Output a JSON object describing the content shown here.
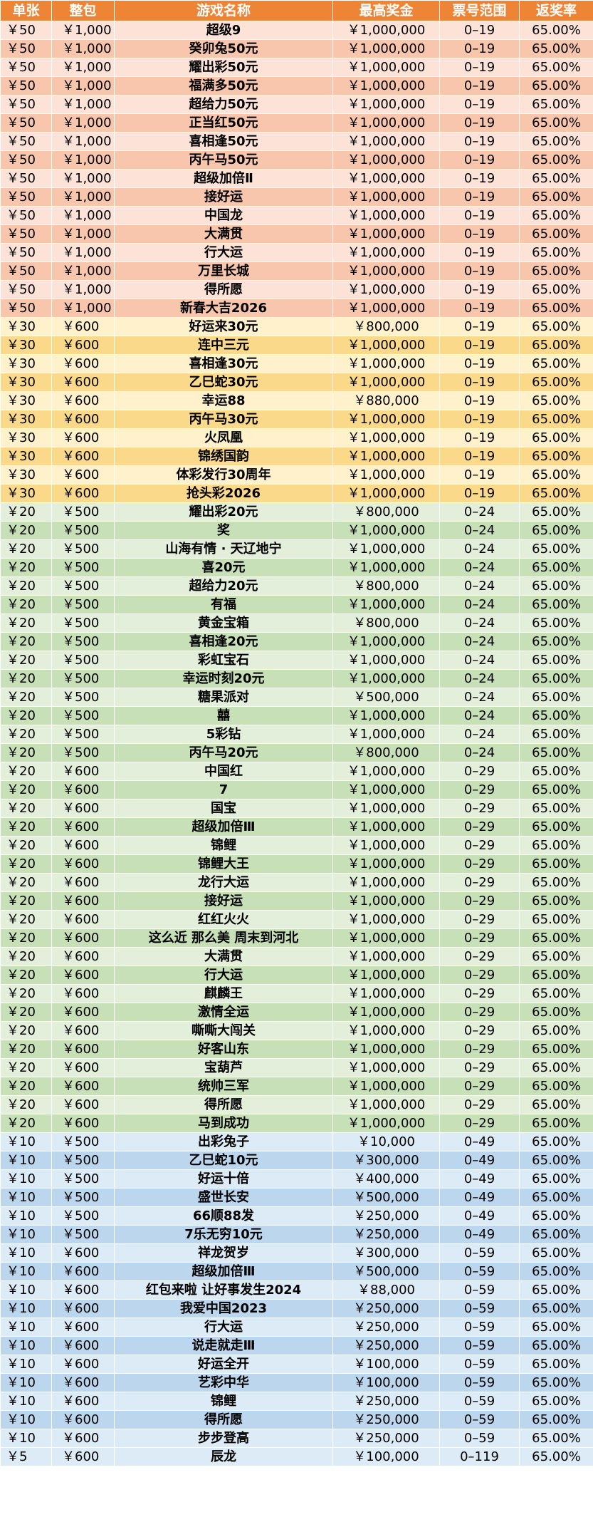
{
  "headers": [
    "单张",
    "整包",
    "游戏名称",
    "最高奖金",
    "票号范围",
    "返奖率"
  ],
  "row_colors": {
    "50": [
      "#fde3d7",
      "#f8c5ad"
    ],
    "30": [
      "#fff1cc",
      "#fbd98a"
    ],
    "20": [
      "#e3efda",
      "#c8e0b7"
    ],
    "10": [
      "#ddebf7",
      "#bcd6ee"
    ],
    "5": [
      "#dcebf6",
      "#dcebf6"
    ]
  },
  "rows": [
    {
      "group": "50",
      "single": "￥50",
      "pack": "￥1,000",
      "name": "超级9",
      "prize": "￥1,000,000",
      "range": "0–19",
      "rate": "65.00%"
    },
    {
      "group": "50",
      "single": "￥50",
      "pack": "￥1,000",
      "name": "癸卯兔50元",
      "prize": "￥1,000,000",
      "range": "0–19",
      "rate": "65.00%"
    },
    {
      "group": "50",
      "single": "￥50",
      "pack": "￥1,000",
      "name": "耀出彩50元",
      "prize": "￥1,000,000",
      "range": "0–19",
      "rate": "65.00%"
    },
    {
      "group": "50",
      "single": "￥50",
      "pack": "￥1,000",
      "name": "福满多50元",
      "prize": "￥1,000,000",
      "range": "0–19",
      "rate": "65.00%"
    },
    {
      "group": "50",
      "single": "￥50",
      "pack": "￥1,000",
      "name": "超给力50元",
      "prize": "￥1,000,000",
      "range": "0–19",
      "rate": "65.00%"
    },
    {
      "group": "50",
      "single": "￥50",
      "pack": "￥1,000",
      "name": "正当红50元",
      "prize": "￥1,000,000",
      "range": "0–19",
      "rate": "65.00%"
    },
    {
      "group": "50",
      "single": "￥50",
      "pack": "￥1,000",
      "name": "喜相逢50元",
      "prize": "￥1,000,000",
      "range": "0–19",
      "rate": "65.00%"
    },
    {
      "group": "50",
      "single": "￥50",
      "pack": "￥1,000",
      "name": "丙午马50元",
      "prize": "￥1,000,000",
      "range": "0–19",
      "rate": "65.00%"
    },
    {
      "group": "50",
      "single": "￥50",
      "pack": "￥1,000",
      "name": "超级加倍Ⅱ",
      "prize": "￥1,000,000",
      "range": "0–19",
      "rate": "65.00%"
    },
    {
      "group": "50",
      "single": "￥50",
      "pack": "￥1,000",
      "name": "接好运",
      "prize": "￥1,000,000",
      "range": "0–19",
      "rate": "65.00%"
    },
    {
      "group": "50",
      "single": "￥50",
      "pack": "￥1,000",
      "name": "中国龙",
      "prize": "￥1,000,000",
      "range": "0–19",
      "rate": "65.00%"
    },
    {
      "group": "50",
      "single": "￥50",
      "pack": "￥1,000",
      "name": "大满贯",
      "prize": "￥1,000,000",
      "range": "0–19",
      "rate": "65.00%"
    },
    {
      "group": "50",
      "single": "￥50",
      "pack": "￥1,000",
      "name": "行大运",
      "prize": "￥1,000,000",
      "range": "0–19",
      "rate": "65.00%"
    },
    {
      "group": "50",
      "single": "￥50",
      "pack": "￥1,000",
      "name": "万里长城",
      "prize": "￥1,000,000",
      "range": "0–19",
      "rate": "65.00%"
    },
    {
      "group": "50",
      "single": "￥50",
      "pack": "￥1,000",
      "name": "得所愿",
      "prize": "￥1,000,000",
      "range": "0–19",
      "rate": "65.00%"
    },
    {
      "group": "50",
      "single": "￥50",
      "pack": "￥1,000",
      "name": "新春大吉2026",
      "prize": "￥1,000,000",
      "range": "0–19",
      "rate": "65.00%"
    },
    {
      "group": "30",
      "single": "￥30",
      "pack": "￥600",
      "name": "好运来30元",
      "prize": "￥800,000",
      "range": "0–19",
      "rate": "65.00%"
    },
    {
      "group": "30",
      "single": "￥30",
      "pack": "￥600",
      "name": "连中三元",
      "prize": "￥1,000,000",
      "range": "0–19",
      "rate": "65.00%"
    },
    {
      "group": "30",
      "single": "￥30",
      "pack": "￥600",
      "name": "喜相逢30元",
      "prize": "￥1,000,000",
      "range": "0–19",
      "rate": "65.00%"
    },
    {
      "group": "30",
      "single": "￥30",
      "pack": "￥600",
      "name": "乙巳蛇30元",
      "prize": "￥1,000,000",
      "range": "0–19",
      "rate": "65.00%"
    },
    {
      "group": "30",
      "single": "￥30",
      "pack": "￥600",
      "name": "幸运88",
      "prize": "￥880,000",
      "range": "0–19",
      "rate": "65.00%"
    },
    {
      "group": "30",
      "single": "￥30",
      "pack": "￥600",
      "name": "丙午马30元",
      "prize": "￥1,000,000",
      "range": "0–19",
      "rate": "65.00%"
    },
    {
      "group": "30",
      "single": "￥30",
      "pack": "￥600",
      "name": "火凤凰",
      "prize": "￥1,000,000",
      "range": "0–19",
      "rate": "65.00%"
    },
    {
      "group": "30",
      "single": "￥30",
      "pack": "￥600",
      "name": "锦绣国韵",
      "prize": "￥1,000,000",
      "range": "0–19",
      "rate": "65.00%"
    },
    {
      "group": "30",
      "single": "￥30",
      "pack": "￥600",
      "name": "体彩发行30周年",
      "prize": "￥1,000,000",
      "range": "0–19",
      "rate": "65.00%"
    },
    {
      "group": "30",
      "single": "￥30",
      "pack": "￥600",
      "name": "抢头彩2026",
      "prize": "￥1,000,000",
      "range": "0–19",
      "rate": "65.00%"
    },
    {
      "group": "20",
      "single": "￥20",
      "pack": "￥500",
      "name": "耀出彩20元",
      "prize": "￥800,000",
      "range": "0–24",
      "rate": "65.00%"
    },
    {
      "group": "20",
      "single": "￥20",
      "pack": "￥500",
      "name": "奖",
      "prize": "￥1,000,000",
      "range": "0–24",
      "rate": "65.00%"
    },
    {
      "group": "20",
      "single": "￥20",
      "pack": "￥500",
      "name": "山海有情 · 天辽地宁",
      "prize": "￥1,000,000",
      "range": "0–24",
      "rate": "65.00%"
    },
    {
      "group": "20",
      "single": "￥20",
      "pack": "￥500",
      "name": "喜20元",
      "prize": "￥1,000,000",
      "range": "0–24",
      "rate": "65.00%"
    },
    {
      "group": "20",
      "single": "￥20",
      "pack": "￥500",
      "name": "超给力20元",
      "prize": "￥800,000",
      "range": "0–24",
      "rate": "65.00%"
    },
    {
      "group": "20",
      "single": "￥20",
      "pack": "￥500",
      "name": "有福",
      "prize": "￥1,000,000",
      "range": "0–24",
      "rate": "65.00%"
    },
    {
      "group": "20",
      "single": "￥20",
      "pack": "￥500",
      "name": "黄金宝箱",
      "prize": "￥800,000",
      "range": "0–24",
      "rate": "65.00%"
    },
    {
      "group": "20",
      "single": "￥20",
      "pack": "￥500",
      "name": "喜相逢20元",
      "prize": "￥1,000,000",
      "range": "0–24",
      "rate": "65.00%"
    },
    {
      "group": "20",
      "single": "￥20",
      "pack": "￥500",
      "name": "彩虹宝石",
      "prize": "￥1,000,000",
      "range": "0–24",
      "rate": "65.00%"
    },
    {
      "group": "20",
      "single": "￥20",
      "pack": "￥500",
      "name": "幸运时刻20元",
      "prize": "￥1,000,000",
      "range": "0–24",
      "rate": "65.00%"
    },
    {
      "group": "20",
      "single": "￥20",
      "pack": "￥500",
      "name": "糖果派对",
      "prize": "￥500,000",
      "range": "0–24",
      "rate": "65.00%"
    },
    {
      "group": "20",
      "single": "￥20",
      "pack": "￥500",
      "name": "囍",
      "prize": "￥1,000,000",
      "range": "0–24",
      "rate": "65.00%"
    },
    {
      "group": "20",
      "single": "￥20",
      "pack": "￥500",
      "name": "5彩钻",
      "prize": "￥1,000,000",
      "range": "0–24",
      "rate": "65.00%"
    },
    {
      "group": "20",
      "single": "￥20",
      "pack": "￥500",
      "name": "丙午马20元",
      "prize": "￥800,000",
      "range": "0–24",
      "rate": "65.00%"
    },
    {
      "group": "20",
      "single": "￥20",
      "pack": "￥600",
      "name": "中国红",
      "prize": "￥1,000,000",
      "range": "0–29",
      "rate": "65.00%"
    },
    {
      "group": "20",
      "single": "￥20",
      "pack": "￥600",
      "name": "7",
      "prize": "￥1,000,000",
      "range": "0–29",
      "rate": "65.00%"
    },
    {
      "group": "20",
      "single": "￥20",
      "pack": "￥600",
      "name": "国宝",
      "prize": "￥1,000,000",
      "range": "0–29",
      "rate": "65.00%"
    },
    {
      "group": "20",
      "single": "￥20",
      "pack": "￥600",
      "name": "超级加倍Ⅲ",
      "prize": "￥1,000,000",
      "range": "0–29",
      "rate": "65.00%"
    },
    {
      "group": "20",
      "single": "￥20",
      "pack": "￥600",
      "name": "锦鲤",
      "prize": "￥1,000,000",
      "range": "0–29",
      "rate": "65.00%"
    },
    {
      "group": "20",
      "single": "￥20",
      "pack": "￥600",
      "name": "锦鲤大王",
      "prize": "￥1,000,000",
      "range": "0–29",
      "rate": "65.00%"
    },
    {
      "group": "20",
      "single": "￥20",
      "pack": "￥600",
      "name": "龙行大运",
      "prize": "￥1,000,000",
      "range": "0–29",
      "rate": "65.00%"
    },
    {
      "group": "20",
      "single": "￥20",
      "pack": "￥600",
      "name": "接好运",
      "prize": "￥1,000,000",
      "range": "0–29",
      "rate": "65.00%"
    },
    {
      "group": "20",
      "single": "￥20",
      "pack": "￥600",
      "name": "红红火火",
      "prize": "￥1,000,000",
      "range": "0–29",
      "rate": "65.00%"
    },
    {
      "group": "20",
      "single": "￥20",
      "pack": "￥600",
      "name": "这么近 那么美 周末到河北",
      "prize": "￥1,000,000",
      "range": "0–29",
      "rate": "65.00%"
    },
    {
      "group": "20",
      "single": "￥20",
      "pack": "￥600",
      "name": "大满贯",
      "prize": "￥1,000,000",
      "range": "0–29",
      "rate": "65.00%"
    },
    {
      "group": "20",
      "single": "￥20",
      "pack": "￥600",
      "name": "行大运",
      "prize": "￥1,000,000",
      "range": "0–29",
      "rate": "65.00%"
    },
    {
      "group": "20",
      "single": "￥20",
      "pack": "￥600",
      "name": "麒麟王",
      "prize": "￥1,000,000",
      "range": "0–29",
      "rate": "65.00%"
    },
    {
      "group": "20",
      "single": "￥20",
      "pack": "￥600",
      "name": "激情全运",
      "prize": "￥1,000,000",
      "range": "0–29",
      "rate": "65.00%"
    },
    {
      "group": "20",
      "single": "￥20",
      "pack": "￥600",
      "name": "嘶嘶大闯关",
      "prize": "￥1,000,000",
      "range": "0–29",
      "rate": "65.00%"
    },
    {
      "group": "20",
      "single": "￥20",
      "pack": "￥600",
      "name": "好客山东",
      "prize": "￥1,000,000",
      "range": "0–29",
      "rate": "65.00%"
    },
    {
      "group": "20",
      "single": "￥20",
      "pack": "￥600",
      "name": "宝葫芦",
      "prize": "￥1,000,000",
      "range": "0–29",
      "rate": "65.00%"
    },
    {
      "group": "20",
      "single": "￥20",
      "pack": "￥600",
      "name": "统帅三军",
      "prize": "￥1,000,000",
      "range": "0–29",
      "rate": "65.00%"
    },
    {
      "group": "20",
      "single": "￥20",
      "pack": "￥600",
      "name": "得所愿",
      "prize": "￥1,000,000",
      "range": "0–29",
      "rate": "65.00%"
    },
    {
      "group": "20",
      "single": "￥20",
      "pack": "￥600",
      "name": "马到成功",
      "prize": "￥1,000,000",
      "range": "0–29",
      "rate": "65.00%"
    },
    {
      "group": "10",
      "single": "￥10",
      "pack": "￥500",
      "name": "出彩兔子",
      "prize": "￥10,000",
      "range": "0–49",
      "rate": "65.00%"
    },
    {
      "group": "10",
      "single": "￥10",
      "pack": "￥500",
      "name": "乙巳蛇10元",
      "prize": "￥300,000",
      "range": "0–49",
      "rate": "65.00%"
    },
    {
      "group": "10",
      "single": "￥10",
      "pack": "￥500",
      "name": "好运十倍",
      "prize": "￥400,000",
      "range": "0–49",
      "rate": "65.00%"
    },
    {
      "group": "10",
      "single": "￥10",
      "pack": "￥500",
      "name": "盛世长安",
      "prize": "￥500,000",
      "range": "0–49",
      "rate": "65.00%"
    },
    {
      "group": "10",
      "single": "￥10",
      "pack": "￥500",
      "name": "66顺88发",
      "prize": "￥250,000",
      "range": "0–49",
      "rate": "65.00%"
    },
    {
      "group": "10",
      "single": "￥10",
      "pack": "￥500",
      "name": "7乐无穷10元",
      "prize": "￥250,000",
      "range": "0–49",
      "rate": "65.00%"
    },
    {
      "group": "10",
      "single": "￥10",
      "pack": "￥600",
      "name": "祥龙贺岁",
      "prize": "￥300,000",
      "range": "0–59",
      "rate": "65.00%"
    },
    {
      "group": "10",
      "single": "￥10",
      "pack": "￥600",
      "name": "超级加倍Ⅲ",
      "prize": "￥500,000",
      "range": "0–59",
      "rate": "65.00%"
    },
    {
      "group": "10",
      "single": "￥10",
      "pack": "￥600",
      "name": "红包来啦 让好事发生2024",
      "prize": "￥88,000",
      "range": "0–59",
      "rate": "65.00%"
    },
    {
      "group": "10",
      "single": "￥10",
      "pack": "￥600",
      "name": "我爱中国2023",
      "prize": "￥250,000",
      "range": "0–59",
      "rate": "65.00%"
    },
    {
      "group": "10",
      "single": "￥10",
      "pack": "￥600",
      "name": "行大运",
      "prize": "￥250,000",
      "range": "0–59",
      "rate": "65.00%"
    },
    {
      "group": "10",
      "single": "￥10",
      "pack": "￥600",
      "name": "说走就走Ⅲ",
      "prize": "￥250,000",
      "range": "0–59",
      "rate": "65.00%"
    },
    {
      "group": "10",
      "single": "￥10",
      "pack": "￥600",
      "name": "好运全开",
      "prize": "￥100,000",
      "range": "0–59",
      "rate": "65.00%"
    },
    {
      "group": "10",
      "single": "￥10",
      "pack": "￥600",
      "name": "艺彩中华",
      "prize": "￥100,000",
      "range": "0–59",
      "rate": "65.00%"
    },
    {
      "group": "10",
      "single": "￥10",
      "pack": "￥600",
      "name": "锦鲤",
      "prize": "￥250,000",
      "range": "0–59",
      "rate": "65.00%"
    },
    {
      "group": "10",
      "single": "￥10",
      "pack": "￥600",
      "name": "得所愿",
      "prize": "￥250,000",
      "range": "0–59",
      "rate": "65.00%"
    },
    {
      "group": "10",
      "single": "￥10",
      "pack": "￥600",
      "name": "步步登高",
      "prize": "￥250,000",
      "range": "0–59",
      "rate": "65.00%"
    },
    {
      "group": "5",
      "single": "￥5",
      "pack": "￥600",
      "name": "辰龙",
      "prize": "￥100,000",
      "range": "0–119",
      "rate": "65.00%"
    }
  ]
}
